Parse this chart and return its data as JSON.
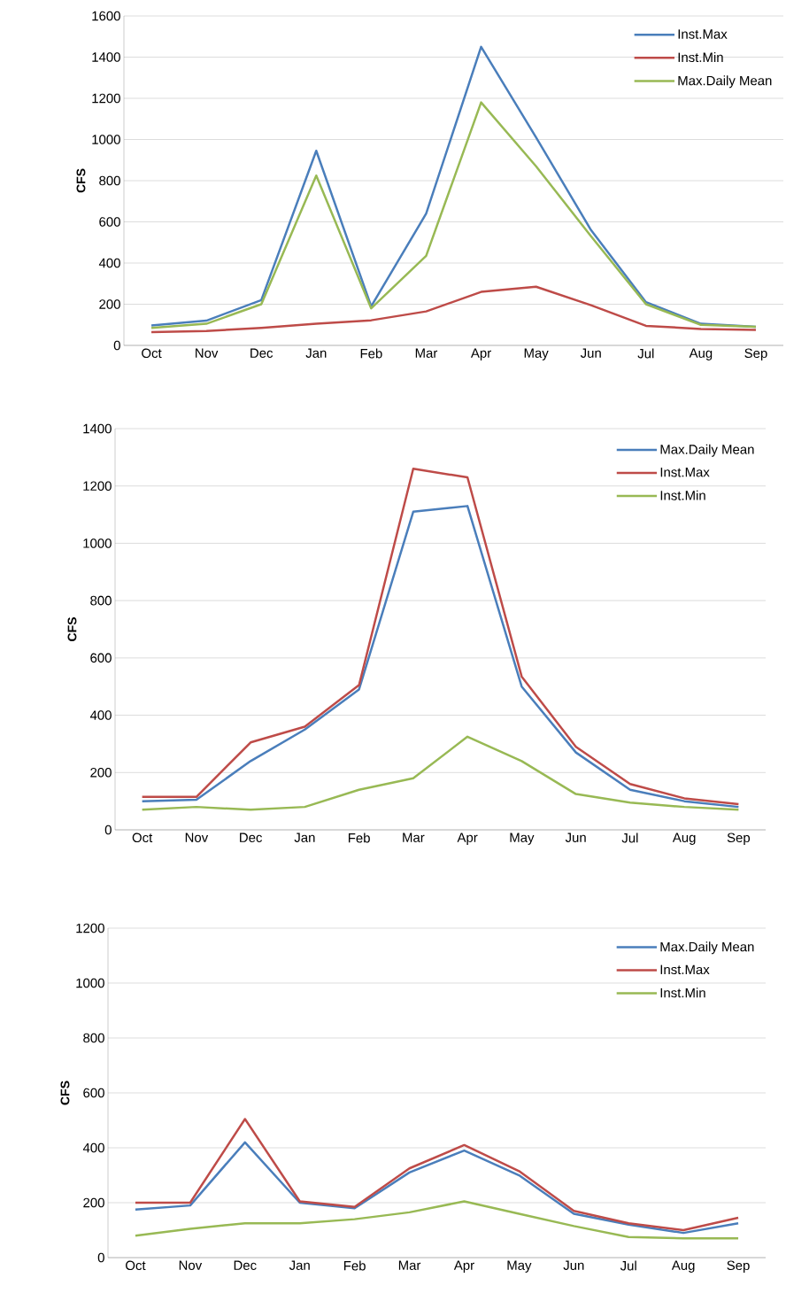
{
  "chart_data": [
    {
      "type": "line",
      "ylabel": "CFS",
      "categories": [
        "Oct",
        "Nov",
        "Dec",
        "Jan",
        "Feb",
        "Mar",
        "Apr",
        "May",
        "Jun",
        "Jul",
        "Aug",
        "Sep"
      ],
      "ylim": [
        0,
        1600
      ],
      "yticks": [
        0,
        200,
        400,
        600,
        800,
        1000,
        1200,
        1400,
        1600
      ],
      "grid": "y",
      "legend": "top right",
      "series": [
        {
          "name": "Inst.Max",
          "color": "#4a7ebb",
          "values": [
            97,
            120,
            220,
            945,
            190,
            640,
            1450,
            1010,
            560,
            210,
            105,
            90
          ]
        },
        {
          "name": "Inst.Min",
          "color": "#be4b48",
          "values": [
            65,
            70,
            85,
            105,
            122,
            165,
            260,
            285,
            195,
            95,
            80,
            75
          ]
        },
        {
          "name": "Max.Daily Mean",
          "color": "#98b954",
          "values": [
            85,
            105,
            200,
            825,
            180,
            435,
            1180,
            870,
            530,
            200,
            100,
            90
          ]
        }
      ]
    },
    {
      "type": "line",
      "ylabel": "CFS",
      "categories": [
        "Oct",
        "Nov",
        "Dec",
        "Jan",
        "Feb",
        "Mar",
        "Apr",
        "May",
        "Jun",
        "Jul",
        "Aug",
        "Sep"
      ],
      "ylim": [
        0,
        1400
      ],
      "yticks": [
        0,
        200,
        400,
        600,
        800,
        1000,
        1200,
        1400
      ],
      "grid": "y",
      "legend": "top right",
      "series": [
        {
          "name": "Max.Daily Mean",
          "color": "#4a7ebb",
          "values": [
            100,
            105,
            240,
            350,
            490,
            1110,
            1130,
            500,
            270,
            140,
            100,
            80
          ]
        },
        {
          "name": "Inst.Max",
          "color": "#be4b48",
          "values": [
            115,
            115,
            305,
            360,
            505,
            1260,
            1230,
            535,
            290,
            160,
            110,
            90
          ]
        },
        {
          "name": "Inst.Min",
          "color": "#98b954",
          "values": [
            70,
            80,
            70,
            80,
            140,
            180,
            325,
            240,
            125,
            95,
            80,
            70
          ]
        }
      ]
    },
    {
      "type": "line",
      "ylabel": "CFS",
      "categories": [
        "Oct",
        "Nov",
        "Dec",
        "Jan",
        "Feb",
        "Mar",
        "Apr",
        "May",
        "Jun",
        "Jul",
        "Aug",
        "Sep"
      ],
      "ylim": [
        0,
        1200
      ],
      "yticks": [
        0,
        200,
        400,
        600,
        800,
        1000,
        1200
      ],
      "grid": "y",
      "legend": "top right",
      "series": [
        {
          "name": "Max.Daily Mean",
          "color": "#4a7ebb",
          "values": [
            175,
            190,
            420,
            200,
            180,
            310,
            390,
            300,
            160,
            120,
            90,
            125
          ]
        },
        {
          "name": "Inst.Max",
          "color": "#be4b48",
          "values": [
            200,
            200,
            505,
            205,
            185,
            325,
            410,
            315,
            170,
            125,
            100,
            145
          ]
        },
        {
          "name": "Inst.Min",
          "color": "#98b954",
          "values": [
            80,
            105,
            125,
            125,
            140,
            165,
            205,
            160,
            115,
            75,
            70,
            70
          ]
        }
      ]
    }
  ]
}
